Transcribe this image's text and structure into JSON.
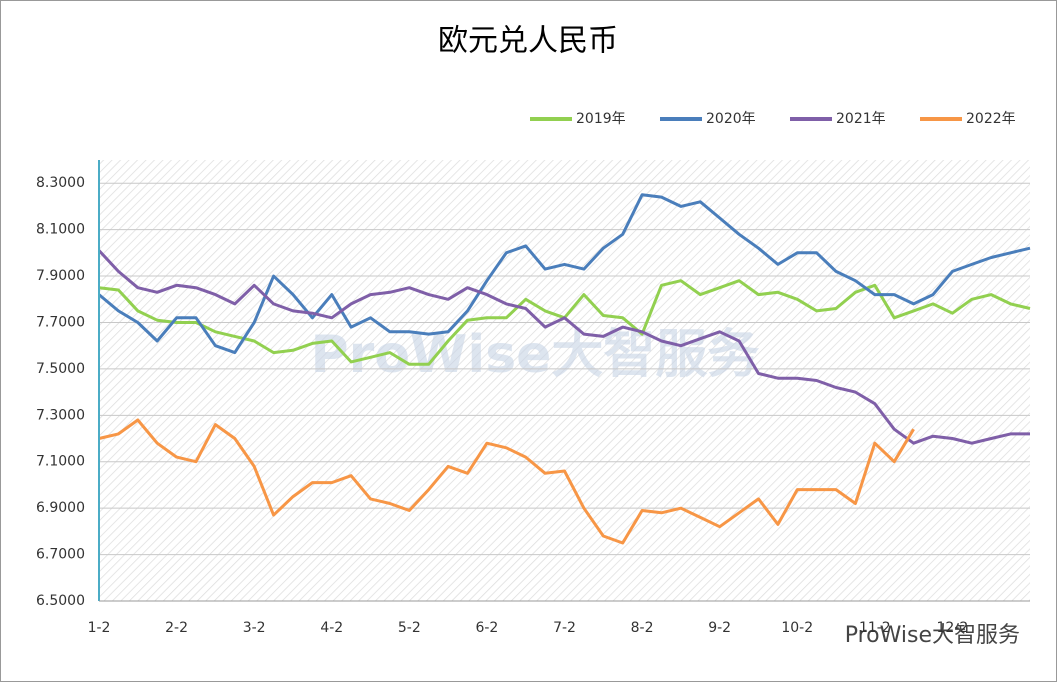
{
  "chart_data": {
    "type": "line",
    "title": "欧元兑人民币",
    "watermark": "ProWise大智服务",
    "categories": [
      "1-2",
      null,
      null,
      null,
      "2-2",
      null,
      null,
      null,
      "3-2",
      null,
      null,
      null,
      "4-2",
      null,
      null,
      null,
      "5-2",
      null,
      null,
      null,
      "6-2",
      null,
      null,
      null,
      "7-2",
      null,
      null,
      null,
      "8-2",
      null,
      null,
      null,
      "9-2",
      null,
      null,
      null,
      "10-2",
      null,
      null,
      null,
      "11-2",
      null,
      null,
      null,
      "12-2",
      null,
      null,
      null,
      null
    ],
    "series": [
      {
        "name": "2019年",
        "color": "#92d050",
        "values": [
          7.85,
          7.84,
          7.75,
          7.71,
          7.7,
          7.7,
          7.66,
          7.64,
          7.62,
          7.57,
          7.58,
          7.61,
          7.62,
          7.53,
          7.55,
          7.57,
          7.52,
          7.52,
          7.62,
          7.71,
          7.72,
          7.72,
          7.8,
          7.75,
          7.72,
          7.82,
          7.73,
          7.72,
          7.65,
          7.86,
          7.88,
          7.82,
          7.85,
          7.88,
          7.82,
          7.83,
          7.8,
          7.75,
          7.76,
          7.83,
          7.86,
          7.72,
          7.75,
          7.78,
          7.74,
          7.8,
          7.82,
          7.78,
          7.76
        ]
      },
      {
        "name": "2020年",
        "color": "#4a7ebb",
        "values": [
          7.82,
          7.75,
          7.7,
          7.62,
          7.72,
          7.72,
          7.6,
          7.57,
          7.7,
          7.9,
          7.82,
          7.72,
          7.82,
          7.68,
          7.72,
          7.66,
          7.66,
          7.65,
          7.66,
          7.75,
          7.88,
          8.0,
          8.03,
          7.93,
          7.95,
          7.93,
          8.02,
          8.08,
          8.25,
          8.24,
          8.2,
          8.22,
          8.15,
          8.08,
          8.02,
          7.95,
          8.0,
          8.0,
          7.92,
          7.88,
          7.82,
          7.82,
          7.78,
          7.82,
          7.92,
          7.95,
          7.98,
          8.0,
          8.02
        ]
      },
      {
        "name": "2021年",
        "color": "#7f5fa8",
        "values": [
          8.01,
          7.92,
          7.85,
          7.83,
          7.86,
          7.85,
          7.82,
          7.78,
          7.86,
          7.78,
          7.75,
          7.74,
          7.72,
          7.78,
          7.82,
          7.83,
          7.85,
          7.82,
          7.8,
          7.85,
          7.82,
          7.78,
          7.76,
          7.68,
          7.72,
          7.65,
          7.64,
          7.68,
          7.66,
          7.62,
          7.6,
          7.63,
          7.66,
          7.62,
          7.48,
          7.46,
          7.46,
          7.45,
          7.42,
          7.4,
          7.35,
          7.24,
          7.18,
          7.21,
          7.2,
          7.18,
          7.2,
          7.22,
          7.22
        ]
      },
      {
        "name": "2022年",
        "color": "#f79646",
        "values": [
          7.2,
          7.22,
          7.28,
          7.18,
          7.12,
          7.1,
          7.26,
          7.2,
          7.08,
          6.87,
          6.95,
          7.01,
          7.01,
          7.04,
          6.94,
          6.92,
          6.89,
          6.98,
          7.08,
          7.05,
          7.18,
          7.16,
          7.12,
          7.05,
          7.06,
          6.9,
          6.78,
          6.75,
          6.89,
          6.88,
          6.9,
          6.86,
          6.82,
          6.88,
          6.94,
          6.83,
          6.98,
          6.98,
          6.98,
          6.92,
          7.18,
          7.1,
          7.24,
          null,
          null,
          null,
          null,
          null,
          null
        ]
      }
    ],
    "ylim": [
      6.5,
      8.4
    ],
    "yticks": [
      {
        "value": 6.5,
        "label": "6.5000"
      },
      {
        "value": 6.7,
        "label": "6.7000"
      },
      {
        "value": 6.9,
        "label": "6.9000"
      },
      {
        "value": 7.1,
        "label": "7.1000"
      },
      {
        "value": 7.3,
        "label": "7.3000"
      },
      {
        "value": 7.5,
        "label": "7.5000"
      },
      {
        "value": 7.7,
        "label": "7.7000"
      },
      {
        "value": 7.9,
        "label": "7.9000"
      },
      {
        "value": 8.1,
        "label": "8.1000"
      },
      {
        "value": 8.3,
        "label": "8.3000"
      }
    ],
    "grid": true,
    "legend": "top-right"
  }
}
